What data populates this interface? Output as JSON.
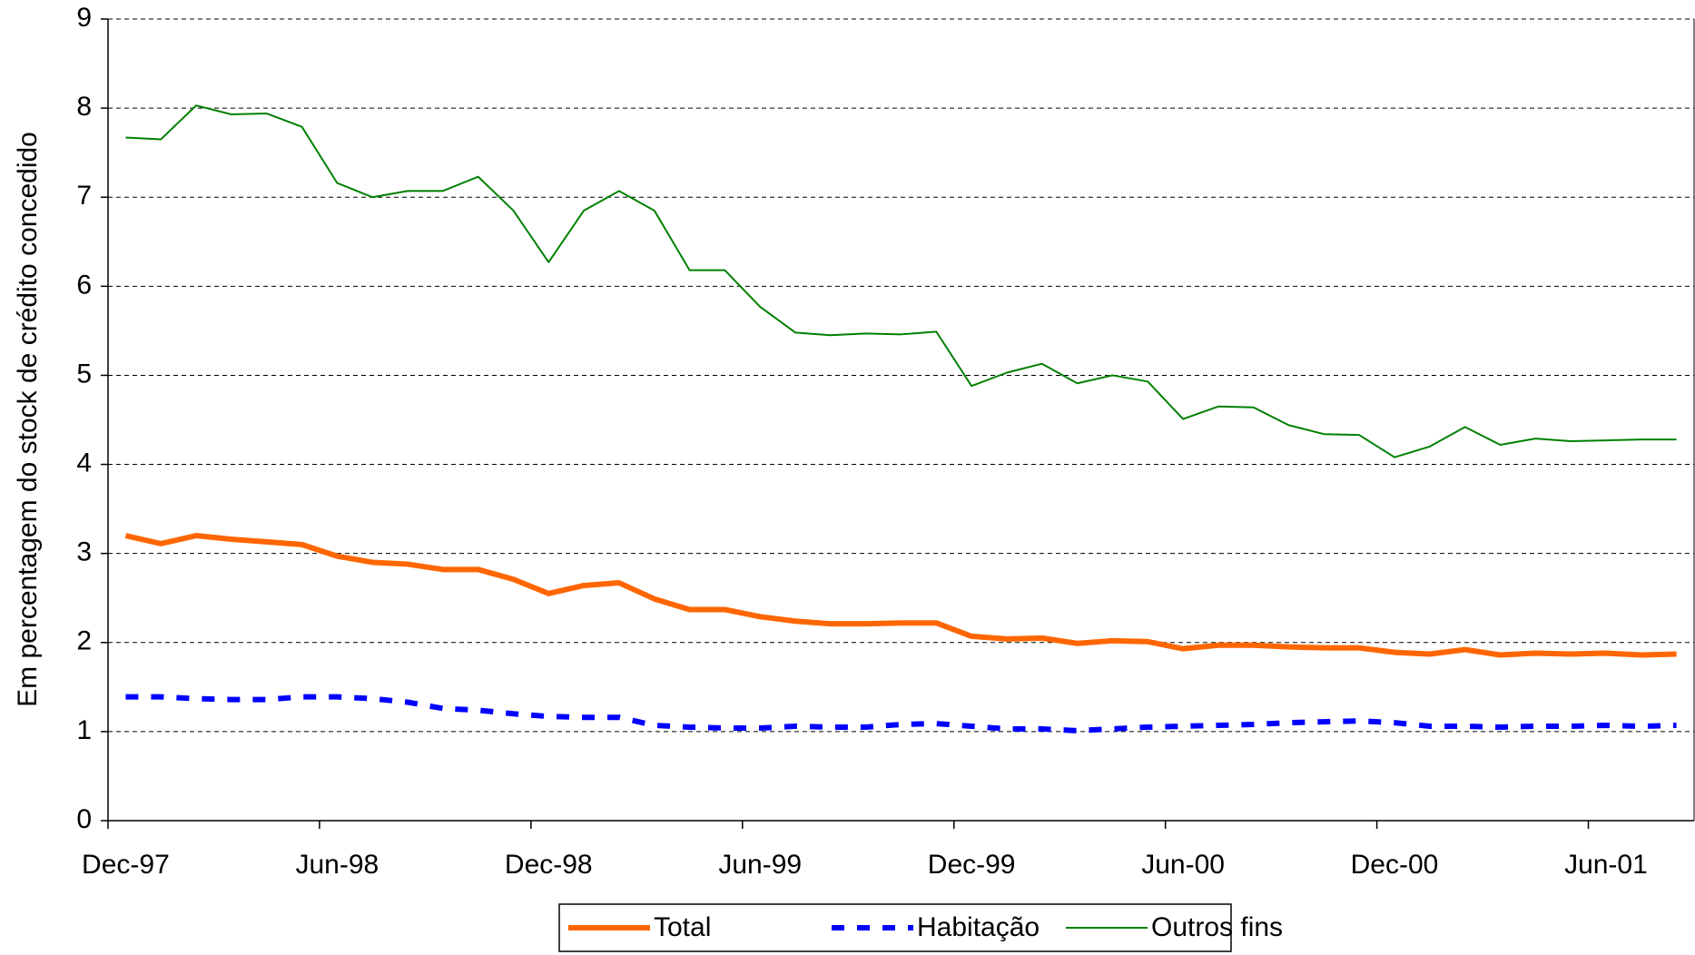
{
  "chart_data": {
    "type": "line",
    "y_label": "Em percentagem do stock de crédito concedido",
    "categories": [
      "Dec-97",
      null,
      null,
      null,
      null,
      null,
      "Jun-98",
      null,
      null,
      null,
      null,
      null,
      "Dec-98",
      null,
      null,
      null,
      null,
      null,
      "Jun-99",
      null,
      null,
      null,
      null,
      null,
      "Dec-99",
      null,
      null,
      null,
      null,
      null,
      "Jun-00",
      null,
      null,
      null,
      null,
      null,
      "Dec-00",
      null,
      null,
      null,
      null,
      null,
      "Jun-01",
      null,
      null
    ],
    "series": [
      {
        "name": "Total",
        "color": "#ff6600",
        "width": 6,
        "dash": "none",
        "values": [
          3.2,
          3.11,
          3.2,
          3.16,
          3.13,
          3.1,
          2.97,
          2.9,
          2.88,
          2.82,
          2.82,
          2.71,
          2.55,
          2.64,
          2.67,
          2.49,
          2.37,
          2.37,
          2.29,
          2.24,
          2.21,
          2.21,
          2.22,
          2.22,
          2.07,
          2.04,
          2.05,
          1.99,
          2.02,
          2.01,
          1.93,
          1.97,
          1.97,
          1.95,
          1.94,
          1.94,
          1.89,
          1.87,
          1.92,
          1.86,
          1.88,
          1.87,
          1.88,
          1.86,
          1.87
        ]
      },
      {
        "name": "Habitação",
        "color": "#0000ff",
        "width": 6,
        "dash": "dashed",
        "values": [
          1.39,
          1.39,
          1.37,
          1.36,
          1.36,
          1.39,
          1.39,
          1.37,
          1.33,
          1.26,
          1.24,
          1.2,
          1.17,
          1.16,
          1.16,
          1.07,
          1.05,
          1.04,
          1.04,
          1.06,
          1.05,
          1.05,
          1.08,
          1.09,
          1.06,
          1.03,
          1.03,
          1.01,
          1.03,
          1.05,
          1.06,
          1.07,
          1.08,
          1.1,
          1.11,
          1.12,
          1.1,
          1.06,
          1.06,
          1.05,
          1.06,
          1.06,
          1.07,
          1.06,
          1.07
        ]
      },
      {
        "name": "Outros fins",
        "color": "#008000",
        "width": 2,
        "dash": "none",
        "values": [
          7.67,
          7.65,
          8.03,
          7.93,
          7.94,
          7.79,
          7.16,
          7.0,
          7.07,
          7.07,
          7.23,
          6.85,
          6.27,
          6.85,
          7.07,
          6.85,
          6.18,
          6.18,
          5.77,
          5.48,
          5.45,
          5.47,
          5.46,
          5.49,
          4.88,
          5.03,
          5.13,
          4.91,
          5.0,
          4.93,
          4.51,
          4.65,
          4.64,
          4.44,
          4.34,
          4.33,
          4.08,
          4.2,
          4.42,
          4.22,
          4.29,
          4.26,
          4.27,
          4.28,
          4.28
        ]
      }
    ],
    "ylim": [
      0,
      9
    ],
    "yticks": [
      0,
      1,
      2,
      3,
      4,
      5,
      6,
      7,
      8,
      9
    ],
    "grid": true,
    "legend": "bottom"
  }
}
